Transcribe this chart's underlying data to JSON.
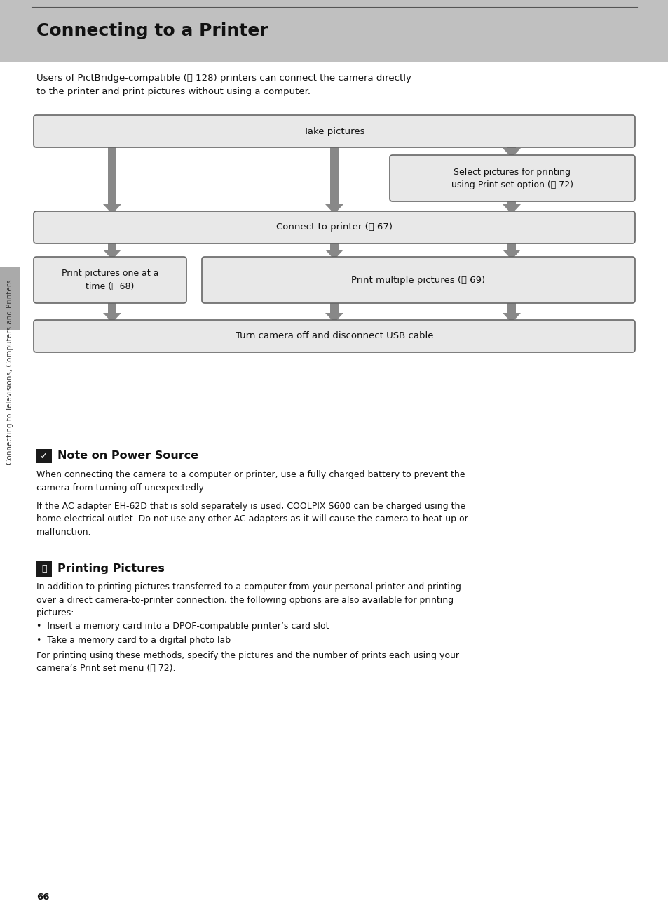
{
  "title": "Connecting to a Printer",
  "header_bg": "#c0c0c0",
  "page_bg": "#ffffff",
  "intro_text": "Users of PictBridge-compatible (ⓧ 128) printers can connect the camera directly\nto the printer and print pictures without using a computer.",
  "box_bg": "#e8e8e8",
  "box_border": "#666666",
  "arrow_color": "#888888",
  "sidebar_text": "Connecting to Televisions, Computers and Printers",
  "note_title": "Note on Power Source",
  "note_text1": "When connecting the camera to a computer or printer, use a fully charged battery to prevent the\ncamera from turning off unexpectedly.",
  "note_text2": "If the AC adapter EH-62D that is sold separately is used, COOLPIX S600 can be charged using the\nhome electrical outlet. Do not use any other AC adapters as it will cause the camera to heat up or\nmalfunction.",
  "print_title": "Printing Pictures",
  "print_text1": "In addition to printing pictures transferred to a computer from your personal printer and printing\nover a direct camera-to-printer connection, the following options are also available for printing\npictures:",
  "bullet1": "•  Insert a memory card into a DPOF-compatible printer’s card slot",
  "bullet2": "•  Take a memory card to a digital photo lab",
  "print_text2": "For printing using these methods, specify the pictures and the number of prints each using your\ncamera’s Print set menu (ⓧ 72).",
  "page_number": "66"
}
